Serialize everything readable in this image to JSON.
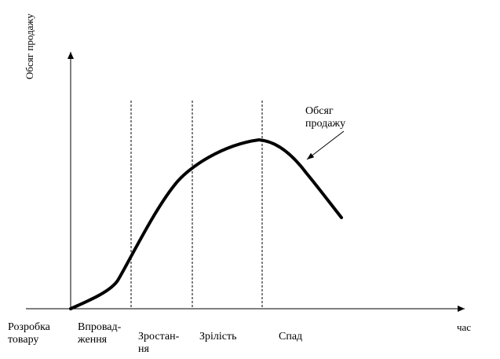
{
  "axes": {
    "y_label": "Обсяг продажу",
    "x_label": "час"
  },
  "curve_label": "Обсяг\nпродажу",
  "stages": [
    "Розробка\nтовару",
    "Впровад-\nження",
    "Зростан-\nня",
    "Зрілість",
    "Спад"
  ],
  "style": {
    "ink": "#000000",
    "background": "#ffffff"
  },
  "icons": {
    "axis_arrow": "arrowhead",
    "annotation_arrow": "pointer-arrow"
  }
}
